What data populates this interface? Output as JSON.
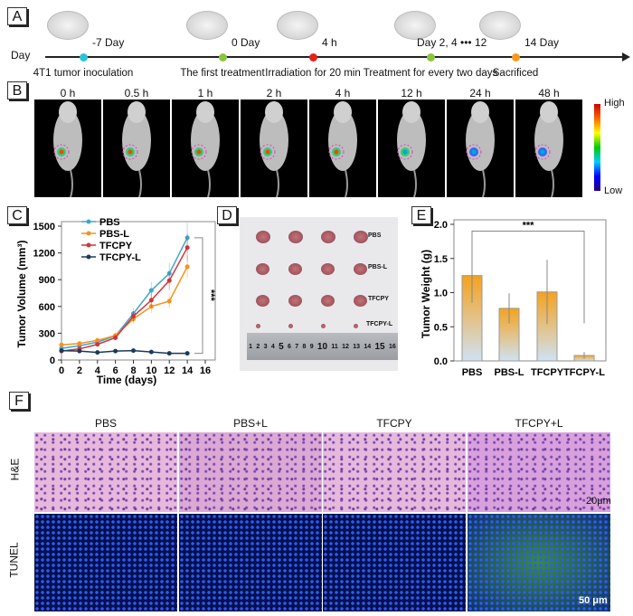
{
  "panels": {
    "a": "A",
    "b": "B",
    "c": "C",
    "d": "D",
    "e": "E",
    "f": "F"
  },
  "timeline": {
    "axis_label": "Day",
    "events": [
      {
        "time": "-7 Day",
        "desc": "4T1 tumor inoculation",
        "color": "#28c4d4"
      },
      {
        "time": "0 Day",
        "desc": "The first treatment",
        "color": "#8cc43c"
      },
      {
        "time": "4 h",
        "desc": "Irradiation for 20 min",
        "color": "#e8201c"
      },
      {
        "time": "Day 2, 4 ••• 12",
        "desc": "Treatment for every two days",
        "color": "#8cc43c"
      },
      {
        "time": "14 Day",
        "desc": "Sacrificed",
        "color": "#f59a1c"
      }
    ]
  },
  "imaging": {
    "times": [
      "0 h",
      "0.5 h",
      "1 h",
      "2 h",
      "4 h",
      "12 h",
      "24 h",
      "48 h"
    ],
    "colorbar_high": "High",
    "colorbar_low": "Low"
  },
  "chart_data": [
    {
      "type": "line",
      "xlabel": "Time (days)",
      "ylabel": "Tumor Volume (mm³)",
      "xlim": [
        0,
        16
      ],
      "ylim": [
        0,
        1500
      ],
      "xticks": [
        0,
        2,
        4,
        6,
        8,
        10,
        12,
        14,
        16
      ],
      "yticks": [
        0,
        300,
        600,
        900,
        1200,
        1500
      ],
      "x": [
        0,
        2,
        4,
        6,
        8,
        10,
        12,
        14
      ],
      "significance": "***",
      "legend": "top-left",
      "series": [
        {
          "name": "PBS",
          "color": "#3aa8c8",
          "marker": "square",
          "values": [
            130,
            160,
            200,
            270,
            520,
            780,
            970,
            1370
          ]
        },
        {
          "name": "PBS-L",
          "color": "#f5921e",
          "marker": "circle",
          "values": [
            170,
            185,
            220,
            275,
            460,
            600,
            660,
            1045
          ]
        },
        {
          "name": "TFCPY",
          "color": "#d0343c",
          "marker": "triangle",
          "values": [
            100,
            125,
            175,
            250,
            490,
            670,
            890,
            1260
          ]
        },
        {
          "name": "TFCPY-L",
          "color": "#1c3a5a",
          "marker": "diamond",
          "values": [
            105,
            100,
            85,
            100,
            105,
            90,
            75,
            75
          ]
        }
      ]
    },
    {
      "type": "bar",
      "categories": [
        "PBS",
        "PBS-L",
        "TFCPY",
        "TFCPY-L"
      ],
      "values": [
        1.25,
        0.77,
        1.01,
        0.08
      ],
      "errors": [
        0.4,
        0.22,
        0.47,
        0.05
      ],
      "ylabel": "Tumor Weight (g)",
      "ylim": [
        0,
        2.0
      ],
      "yticks": [
        "0.0",
        "0.5",
        "1.0",
        "1.5",
        "2.0"
      ],
      "significance": "***",
      "bar_color_top": "#f5a21e",
      "bar_color_bottom": "#cfe2f3"
    }
  ],
  "photo": {
    "rows": [
      "PBS",
      "PBS-L",
      "TFCPY",
      "TFCPY-L"
    ],
    "ruler": [
      "1",
      "2",
      "3",
      "4",
      "5",
      "6",
      "7",
      "8",
      "9",
      "10",
      "11",
      "12",
      "13",
      "14",
      "15",
      "16"
    ]
  },
  "histology": {
    "columns": [
      "PBS",
      "PBS+L",
      "TFCPY",
      "TFCPY+L"
    ],
    "rows": [
      "H&E",
      "TUNEL"
    ],
    "scale_he": "20μm",
    "scale_tunel": "50 μm"
  }
}
